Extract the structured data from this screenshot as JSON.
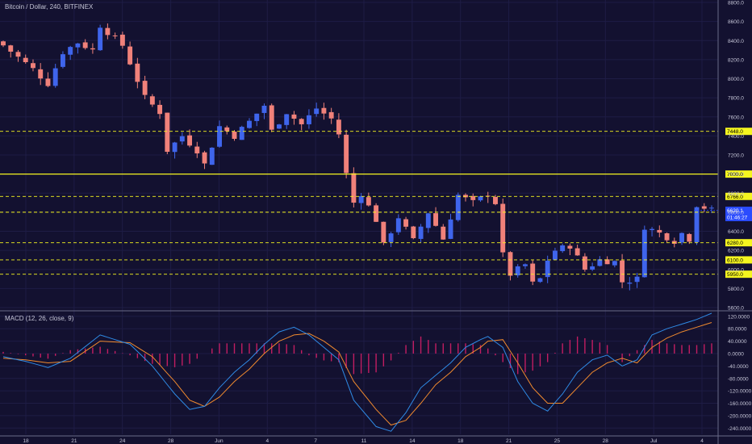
{
  "header": {
    "symbol_title": "Bitcoin / Dollar, 240, BITFINEX",
    "macd_title": "MACD (12, 26, close, 9)"
  },
  "colors": {
    "background": "#131130",
    "grid": "#1e1c45",
    "axis_text": "#c6c6d8",
    "up_candle": "#3f65ec",
    "down_candle": "#f0817a",
    "level_line": "#f5f51f",
    "macd_line": "#2f8be6",
    "signal_line": "#f08a2e",
    "histogram": "#c21d62",
    "price_badge": "#2a4bff"
  },
  "chart_data": [
    {
      "type": "candlestick",
      "title": "Bitcoin / Dollar, 240, BITFINEX",
      "y_axis_side": "right",
      "ylim": [
        5600,
        8800
      ],
      "y_ticks": [
        "8800.0",
        "8600.0",
        "8400.0",
        "8200.0",
        "8000.0",
        "7800.0",
        "7600.0",
        "7400.0",
        "7200.0",
        "7000.0",
        "6800.0",
        "6600.0",
        "6400.0",
        "6200.0",
        "6000.0",
        "5800.0",
        "5600.0"
      ],
      "x_ticks": [
        "18",
        "21",
        "24",
        "28",
        "Jun",
        "4",
        "7",
        "11",
        "14",
        "18",
        "21",
        "25",
        "28",
        "Jul",
        "4"
      ],
      "price_path": [
        [
          0,
          8350
        ],
        [
          4,
          8100
        ],
        [
          6,
          7950
        ],
        [
          8,
          8280
        ],
        [
          10,
          8380
        ],
        [
          12,
          8300
        ],
        [
          13,
          8560
        ],
        [
          16,
          8350
        ],
        [
          19,
          7800
        ],
        [
          21,
          7650
        ],
        [
          22,
          7250
        ],
        [
          24,
          7400
        ],
        [
          26,
          7250
        ],
        [
          27,
          7100
        ],
        [
          29,
          7500
        ],
        [
          31,
          7400
        ],
        [
          33,
          7550
        ],
        [
          35,
          7720
        ],
        [
          36,
          7450
        ],
        [
          38,
          7650
        ],
        [
          40,
          7520
        ],
        [
          42,
          7690
        ],
        [
          44,
          7580
        ],
        [
          45,
          7420
        ],
        [
          46,
          7000
        ],
        [
          47,
          6700
        ],
        [
          48,
          6800
        ],
        [
          50,
          6520
        ],
        [
          51,
          6250
        ],
        [
          53,
          6550
        ],
        [
          55,
          6300
        ],
        [
          57,
          6600
        ],
        [
          59,
          6320
        ],
        [
          61,
          6780
        ],
        [
          63,
          6700
        ],
        [
          65,
          6790
        ],
        [
          66,
          6700
        ],
        [
          67,
          6150
        ],
        [
          68,
          5950
        ],
        [
          70,
          6050
        ],
        [
          71,
          5850
        ],
        [
          72,
          5900
        ],
        [
          73,
          6100
        ],
        [
          74,
          6200
        ],
        [
          76,
          6250
        ],
        [
          78,
          6000
        ],
        [
          80,
          6100
        ],
        [
          82,
          6080
        ],
        [
          83,
          5870
        ],
        [
          85,
          5900
        ],
        [
          86,
          6450
        ],
        [
          88,
          6380
        ],
        [
          90,
          6300
        ],
        [
          91,
          6380
        ],
        [
          92,
          6320
        ],
        [
          93,
          6680
        ],
        [
          95,
          6620
        ]
      ],
      "levels": [
        {
          "label": "7448.0",
          "value": 7448.0,
          "style": "dashed"
        },
        {
          "label": "7000.0",
          "value": 7000.0,
          "style": "solid"
        },
        {
          "label": "6766.0",
          "value": 6766.0,
          "style": "dashed"
        },
        {
          "label": "6600.0",
          "value": 6600.0,
          "style": "dashed"
        },
        {
          "label": "6280.0",
          "value": 6280.0,
          "style": "dashed"
        },
        {
          "label": "6100.0",
          "value": 6100.0,
          "style": "dashed"
        },
        {
          "label": "5950.0",
          "value": 5950.0,
          "style": "dashed"
        }
      ],
      "last_price": {
        "label": "6620.1",
        "value": 6620.1,
        "countdown": "01:46:27"
      }
    },
    {
      "type": "line",
      "title": "MACD (12, 26, close, 9)",
      "ylim": [
        -260,
        130
      ],
      "y_ticks": [
        "120.0000",
        "80.0000",
        "40.0000",
        "0.0000",
        "-40.0000",
        "-80.0000",
        "-120.0000",
        "-160.0000",
        "-200.0000",
        "-240.0000"
      ],
      "series": [
        {
          "key": "macd",
          "values": [
            [
              0,
              -10
            ],
            [
              3,
              -25
            ],
            [
              6,
              -45
            ],
            [
              9,
              -15
            ],
            [
              13,
              60
            ],
            [
              17,
              30
            ],
            [
              20,
              -40
            ],
            [
              23,
              -130
            ],
            [
              25,
              -180
            ],
            [
              27,
              -170
            ],
            [
              29,
              -110
            ],
            [
              31,
              -60
            ],
            [
              33,
              -20
            ],
            [
              35,
              30
            ],
            [
              37,
              70
            ],
            [
              39,
              85
            ],
            [
              41,
              60
            ],
            [
              43,
              20
            ],
            [
              45,
              -20
            ],
            [
              47,
              -150
            ],
            [
              50,
              -235
            ],
            [
              52,
              -250
            ],
            [
              54,
              -190
            ],
            [
              56,
              -110
            ],
            [
              58,
              -70
            ],
            [
              60,
              -30
            ],
            [
              62,
              20
            ],
            [
              64,
              45
            ],
            [
              65,
              55
            ],
            [
              67,
              20
            ],
            [
              69,
              -90
            ],
            [
              71,
              -160
            ],
            [
              73,
              -185
            ],
            [
              75,
              -130
            ],
            [
              77,
              -60
            ],
            [
              79,
              -20
            ],
            [
              81,
              -5
            ],
            [
              83,
              -40
            ],
            [
              85,
              -20
            ],
            [
              87,
              60
            ],
            [
              89,
              80
            ],
            [
              91,
              95
            ],
            [
              93,
              110
            ],
            [
              95,
              130
            ]
          ]
        },
        {
          "key": "signal",
          "values": [
            [
              0,
              -15
            ],
            [
              3,
              -20
            ],
            [
              6,
              -30
            ],
            [
              9,
              -25
            ],
            [
              13,
              40
            ],
            [
              17,
              35
            ],
            [
              20,
              -10
            ],
            [
              23,
              -90
            ],
            [
              25,
              -150
            ],
            [
              27,
              -170
            ],
            [
              29,
              -140
            ],
            [
              31,
              -90
            ],
            [
              33,
              -50
            ],
            [
              35,
              0
            ],
            [
              37,
              40
            ],
            [
              39,
              60
            ],
            [
              41,
              65
            ],
            [
              43,
              40
            ],
            [
              45,
              5
            ],
            [
              47,
              -90
            ],
            [
              50,
              -180
            ],
            [
              52,
              -230
            ],
            [
              54,
              -215
            ],
            [
              56,
              -160
            ],
            [
              58,
              -100
            ],
            [
              60,
              -60
            ],
            [
              62,
              -10
            ],
            [
              64,
              20
            ],
            [
              65,
              40
            ],
            [
              67,
              45
            ],
            [
              69,
              -30
            ],
            [
              71,
              -110
            ],
            [
              73,
              -160
            ],
            [
              75,
              -160
            ],
            [
              77,
              -110
            ],
            [
              79,
              -60
            ],
            [
              81,
              -30
            ],
            [
              83,
              -15
            ],
            [
              85,
              -30
            ],
            [
              87,
              20
            ],
            [
              89,
              50
            ],
            [
              91,
              70
            ],
            [
              93,
              85
            ],
            [
              95,
              100
            ]
          ]
        }
      ]
    }
  ]
}
